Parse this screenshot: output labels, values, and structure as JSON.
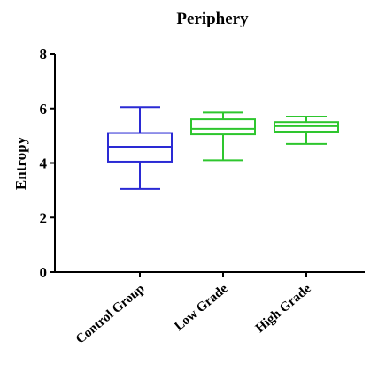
{
  "chart_data": {
    "type": "box",
    "title": "Periphery",
    "ylabel": "Entropy",
    "xlabel": "",
    "ylim": [
      0,
      8
    ],
    "yticks": [
      0,
      2,
      4,
      6,
      8
    ],
    "categories": [
      "Control Group",
      "Low Grade",
      "High Grade"
    ],
    "boxes": [
      {
        "category": "Control Group",
        "color": "#2a2ad4",
        "min": 3.05,
        "q1": 4.05,
        "median": 4.6,
        "q3": 5.1,
        "max": 6.05
      },
      {
        "category": "Low Grade",
        "color": "#2ec62e",
        "min": 4.1,
        "q1": 5.05,
        "median": 5.25,
        "q3": 5.6,
        "max": 5.85
      },
      {
        "category": "High Grade",
        "color": "#2ec62e",
        "min": 4.7,
        "q1": 5.15,
        "median": 5.35,
        "q3": 5.5,
        "max": 5.7
      }
    ],
    "grid": false,
    "legend": "none"
  }
}
